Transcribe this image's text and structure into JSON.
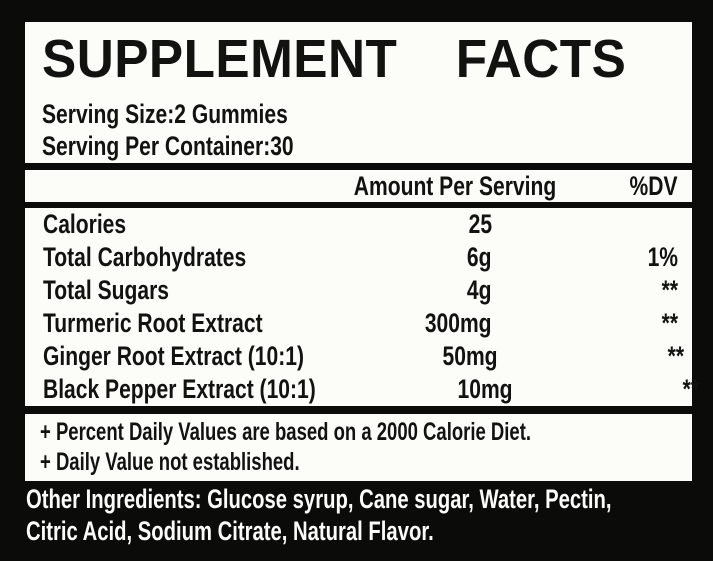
{
  "colors": {
    "background": "#0b0b0a",
    "panel": "#fcfcf9",
    "ink": "#121210"
  },
  "title": "SUPPLEMENT FACTS",
  "serving": {
    "size_line": "Serving Size:2 Gummies",
    "per_container_line": "Serving Per Container:30"
  },
  "table": {
    "amount_header": "Amount Per Serving",
    "dv_header": "%DV",
    "rows": [
      {
        "name": "Calories",
        "amount": "25",
        "dv": ""
      },
      {
        "name": "Total Carbohydrates",
        "amount": "6g",
        "dv": "1%"
      },
      {
        "name": "Total Sugars",
        "amount": "4g",
        "dv": "**"
      },
      {
        "name": "Turmeric Root Extract",
        "amount": "300mg",
        "dv": "**"
      },
      {
        "name": "Ginger Root Extract (10:1)",
        "amount": "50mg",
        "dv": "**"
      },
      {
        "name": "Black Pepper Extract (10:1)",
        "amount": "10mg",
        "dv": "**"
      }
    ]
  },
  "footnotes": {
    "percent_dv": "+ Percent Daily Values are based on a 2000 Calorie Diet.",
    "not_established": "+ Daily Value not established."
  },
  "other_ingredients": "Other Ingredients: Glucose syrup, Cane sugar, Water, Pectin,\nCitric Acid, Sodium Citrate, Natural Flavor."
}
